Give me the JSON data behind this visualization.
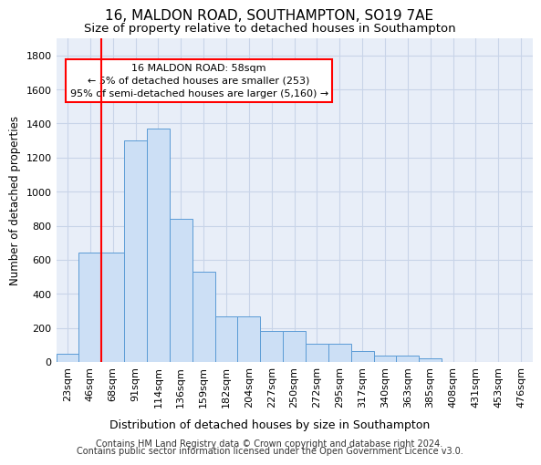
{
  "title": "16, MALDON ROAD, SOUTHAMPTON, SO19 7AE",
  "subtitle": "Size of property relative to detached houses in Southampton",
  "xlabel": "Distribution of detached houses by size in Southampton",
  "ylabel": "Number of detached properties",
  "footnote1": "Contains HM Land Registry data © Crown copyright and database right 2024.",
  "footnote2": "Contains public sector information licensed under the Open Government Licence v3.0.",
  "annotation_title": "16 MALDON ROAD: 58sqm",
  "annotation_line1": "← 5% of detached houses are smaller (253)",
  "annotation_line2": "95% of semi-detached houses are larger (5,160) →",
  "categories": [
    "23sqm",
    "46sqm",
    "68sqm",
    "91sqm",
    "114sqm",
    "136sqm",
    "159sqm",
    "182sqm",
    "204sqm",
    "227sqm",
    "250sqm",
    "272sqm",
    "295sqm",
    "317sqm",
    "340sqm",
    "363sqm",
    "385sqm",
    "408sqm",
    "431sqm",
    "453sqm",
    "476sqm"
  ],
  "values": [
    50,
    640,
    640,
    1300,
    1370,
    840,
    530,
    270,
    270,
    180,
    180,
    105,
    105,
    65,
    35,
    35,
    20,
    0,
    0,
    0,
    0
  ],
  "bar_color": "#ccdff5",
  "bar_edge_color": "#5b9bd5",
  "red_line_x": 1.5,
  "ylim": [
    0,
    1900
  ],
  "yticks": [
    0,
    200,
    400,
    600,
    800,
    1000,
    1200,
    1400,
    1600,
    1800
  ],
  "background_color": "#ffffff",
  "plot_bg_color": "#e8eef8",
  "grid_color": "#c8d4e8",
  "title_fontsize": 11,
  "subtitle_fontsize": 9.5,
  "xlabel_fontsize": 9,
  "ylabel_fontsize": 8.5,
  "tick_fontsize": 8,
  "annotation_fontsize": 8,
  "footnote_fontsize": 7
}
